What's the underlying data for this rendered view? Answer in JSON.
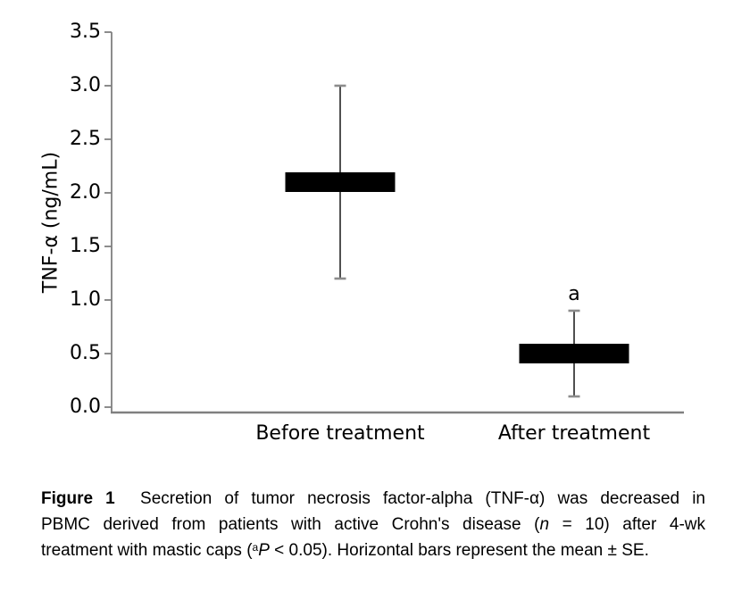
{
  "chart_data": {
    "type": "bar",
    "subtype": "mean-with-error-bars",
    "title": "",
    "categories": [
      "Before treatment",
      "After treatment"
    ],
    "series": [
      {
        "name": "TNF-α (ng/mL)",
        "values": [
          2.1,
          0.5
        ],
        "errors": [
          0.9,
          0.4
        ],
        "error_type": "SE"
      }
    ],
    "xlabel": "",
    "ylabel": "TNF-α (ng/mL)",
    "ylim": [
      0,
      3.5
    ],
    "yticks": [
      0.0,
      0.5,
      1.0,
      1.5,
      2.0,
      2.5,
      3.0,
      3.5
    ],
    "ytick_labels": [
      "0.0",
      "0.5",
      "1.0",
      "1.5",
      "2.0",
      "2.5",
      "3.0",
      "3.5"
    ],
    "grid": false,
    "legend": false,
    "annotations": [
      {
        "text": "a",
        "category": "After treatment",
        "position": "above-error-bar"
      }
    ]
  },
  "colors": {
    "bar": "#000000",
    "axis": "#808080",
    "error_line": "#3d3d3d",
    "error_cap": "#8c8c8c",
    "text": "#000000"
  },
  "caption": {
    "lines": [
      {
        "justify": true,
        "segments": [
          {
            "text": "Figure 1",
            "bold": true
          },
          {
            "text": "  Secretion of tumor necrosis factor-alpha (TNF-α) was decreased in"
          }
        ]
      },
      {
        "justify": true,
        "segments": [
          {
            "text": "PBMC derived from patients with active Crohn's disease ("
          },
          {
            "text": "n",
            "italic": true
          },
          {
            "text": " = 10) after 4-wk"
          }
        ]
      },
      {
        "justify": false,
        "segments": [
          {
            "text": "treatment with mastic caps ("
          },
          {
            "text": "a",
            "sup": true
          },
          {
            "text": "P",
            "italic": true
          },
          {
            "text": " < 0.05). Horizontal bars represent the mean ± SE."
          }
        ]
      }
    ]
  }
}
